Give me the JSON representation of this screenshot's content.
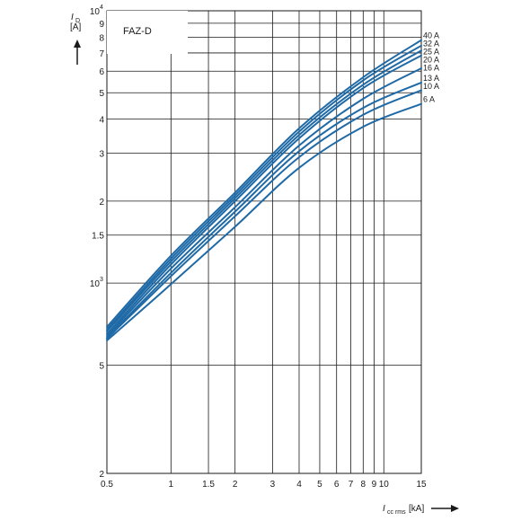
{
  "chart_data": {
    "type": "line",
    "title": "FAZ-D",
    "ylabel": {
      "symbol": "I",
      "subscript": "D",
      "unit": "[A]"
    },
    "xlabel": {
      "symbol": "I",
      "subscript": "cc rms",
      "unit": "[kA]"
    },
    "x_scale": "log",
    "y_scale": "log",
    "xlim": [
      0.5,
      15
    ],
    "ylim": [
      200,
      10000
    ],
    "x_ticks": [
      {
        "v": 0.5,
        "label": "0.5"
      },
      {
        "v": 1,
        "label": "1"
      },
      {
        "v": 1.5,
        "label": "1.5"
      },
      {
        "v": 2,
        "label": "2"
      },
      {
        "v": 3,
        "label": "3"
      },
      {
        "v": 4,
        "label": "4"
      },
      {
        "v": 5,
        "label": "5"
      },
      {
        "v": 6,
        "label": "6"
      },
      {
        "v": 7,
        "label": "7"
      },
      {
        "v": 8,
        "label": "8"
      },
      {
        "v": 9,
        "label": "9"
      },
      {
        "v": 10,
        "label": "10"
      },
      {
        "v": 15,
        "label": "15"
      }
    ],
    "y_ticks": [
      {
        "v": 200,
        "label": "2",
        "sup": ""
      },
      {
        "v": 500,
        "label": "5",
        "sup": ""
      },
      {
        "v": 1000,
        "label": "10",
        "sup": "3"
      },
      {
        "v": 1500,
        "label": "1.5",
        "sup": ""
      },
      {
        "v": 2000,
        "label": "2",
        "sup": ""
      },
      {
        "v": 3000,
        "label": "3",
        "sup": ""
      },
      {
        "v": 4000,
        "label": "4",
        "sup": ""
      },
      {
        "v": 5000,
        "label": "5",
        "sup": ""
      },
      {
        "v": 6000,
        "label": "6",
        "sup": ""
      },
      {
        "v": 7000,
        "label": "7",
        "sup": ""
      },
      {
        "v": 8000,
        "label": "8",
        "sup": ""
      },
      {
        "v": 9000,
        "label": "9",
        "sup": ""
      },
      {
        "v": 10000,
        "label": "10",
        "sup": "4"
      }
    ],
    "series": [
      {
        "name": "40 A",
        "x": [
          0.5,
          1,
          2,
          4,
          8,
          15
        ],
        "y": [
          690,
          1260,
          2150,
          3700,
          5700,
          7800
        ]
      },
      {
        "name": "32 A",
        "x": [
          0.5,
          1,
          2,
          4,
          8,
          15
        ],
        "y": [
          675,
          1230,
          2100,
          3600,
          5550,
          7450
        ]
      },
      {
        "name": "25 A",
        "x": [
          0.5,
          1,
          2,
          4,
          8,
          15
        ],
        "y": [
          665,
          1200,
          2050,
          3500,
          5350,
          7150
        ]
      },
      {
        "name": "20 A",
        "x": [
          0.5,
          1,
          2,
          4,
          8,
          15
        ],
        "y": [
          650,
          1170,
          2000,
          3400,
          5200,
          6850
        ]
      },
      {
        "name": "16 A",
        "x": [
          0.5,
          1,
          2,
          4,
          8,
          15
        ],
        "y": [
          640,
          1130,
          1900,
          3200,
          4750,
          6150
        ]
      },
      {
        "name": "13 A",
        "x": [
          0.5,
          1,
          2,
          4,
          8,
          15
        ],
        "y": [
          630,
          1090,
          1830,
          3050,
          4400,
          5450
        ]
      },
      {
        "name": "10 A",
        "x": [
          0.5,
          1,
          2,
          4,
          8,
          15
        ],
        "y": [
          625,
          1060,
          1760,
          2900,
          4150,
          5100
        ]
      },
      {
        "name": "6 A",
        "x": [
          0.5,
          1,
          2,
          4,
          8,
          15
        ],
        "y": [
          615,
          990,
          1610,
          2650,
          3750,
          4550
        ]
      }
    ],
    "line_color": "#1f6aa6",
    "grid": true
  }
}
